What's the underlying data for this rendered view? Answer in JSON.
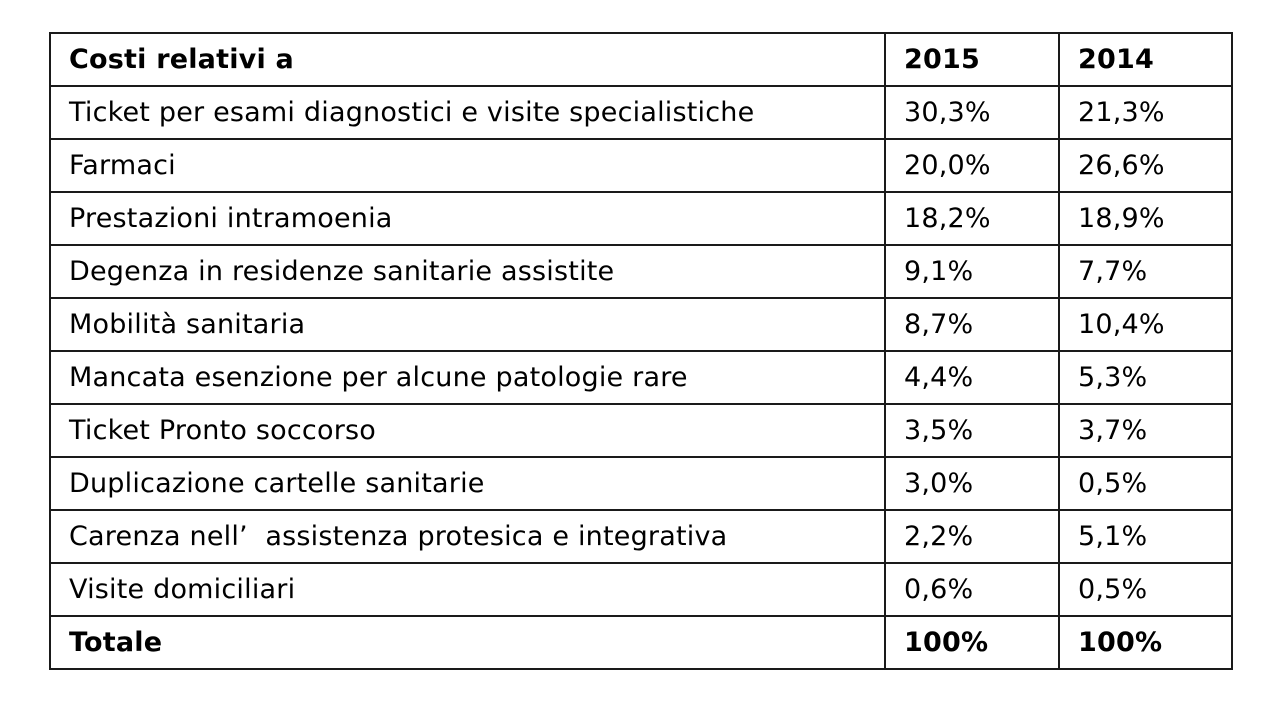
{
  "table": {
    "headers": {
      "label": "Costi relativi a",
      "year_2015": "2015",
      "year_2014": "2014"
    },
    "rows": [
      {
        "label": "Ticket per esami diagnostici e visite specialistiche",
        "v2015": "30,3%",
        "v2014": "21,3%"
      },
      {
        "label": "Farmaci",
        "v2015": "20,0%",
        "v2014": "26,6%"
      },
      {
        "label": "Prestazioni intramoenia",
        "v2015": "18,2%",
        "v2014": "18,9%"
      },
      {
        "label": "Degenza in residenze sanitarie assistite",
        "v2015": "9,1%",
        "v2014": "7,7%"
      },
      {
        "label": "Mobilità sanitaria",
        "v2015": "8,7%",
        "v2014": "10,4%"
      },
      {
        "label": "Mancata esenzione per alcune patologie rare",
        "v2015": "4,4%",
        "v2014": "5,3%"
      },
      {
        "label": "Ticket Pronto soccorso",
        "v2015": "3,5%",
        "v2014": "3,7%"
      },
      {
        "label": "Duplicazione cartelle sanitarie",
        "v2015": "3,0%",
        "v2014": "0,5%"
      },
      {
        "label": "Carenza nell’  assistenza protesica e integrativa",
        "v2015": "2,2%",
        "v2014": "5,1%"
      },
      {
        "label": "Visite domiciliari",
        "v2015": "0,6%",
        "v2014": "0,5%"
      }
    ],
    "total": {
      "label": "Totale",
      "v2015": "100%",
      "v2014": "100%"
    }
  }
}
